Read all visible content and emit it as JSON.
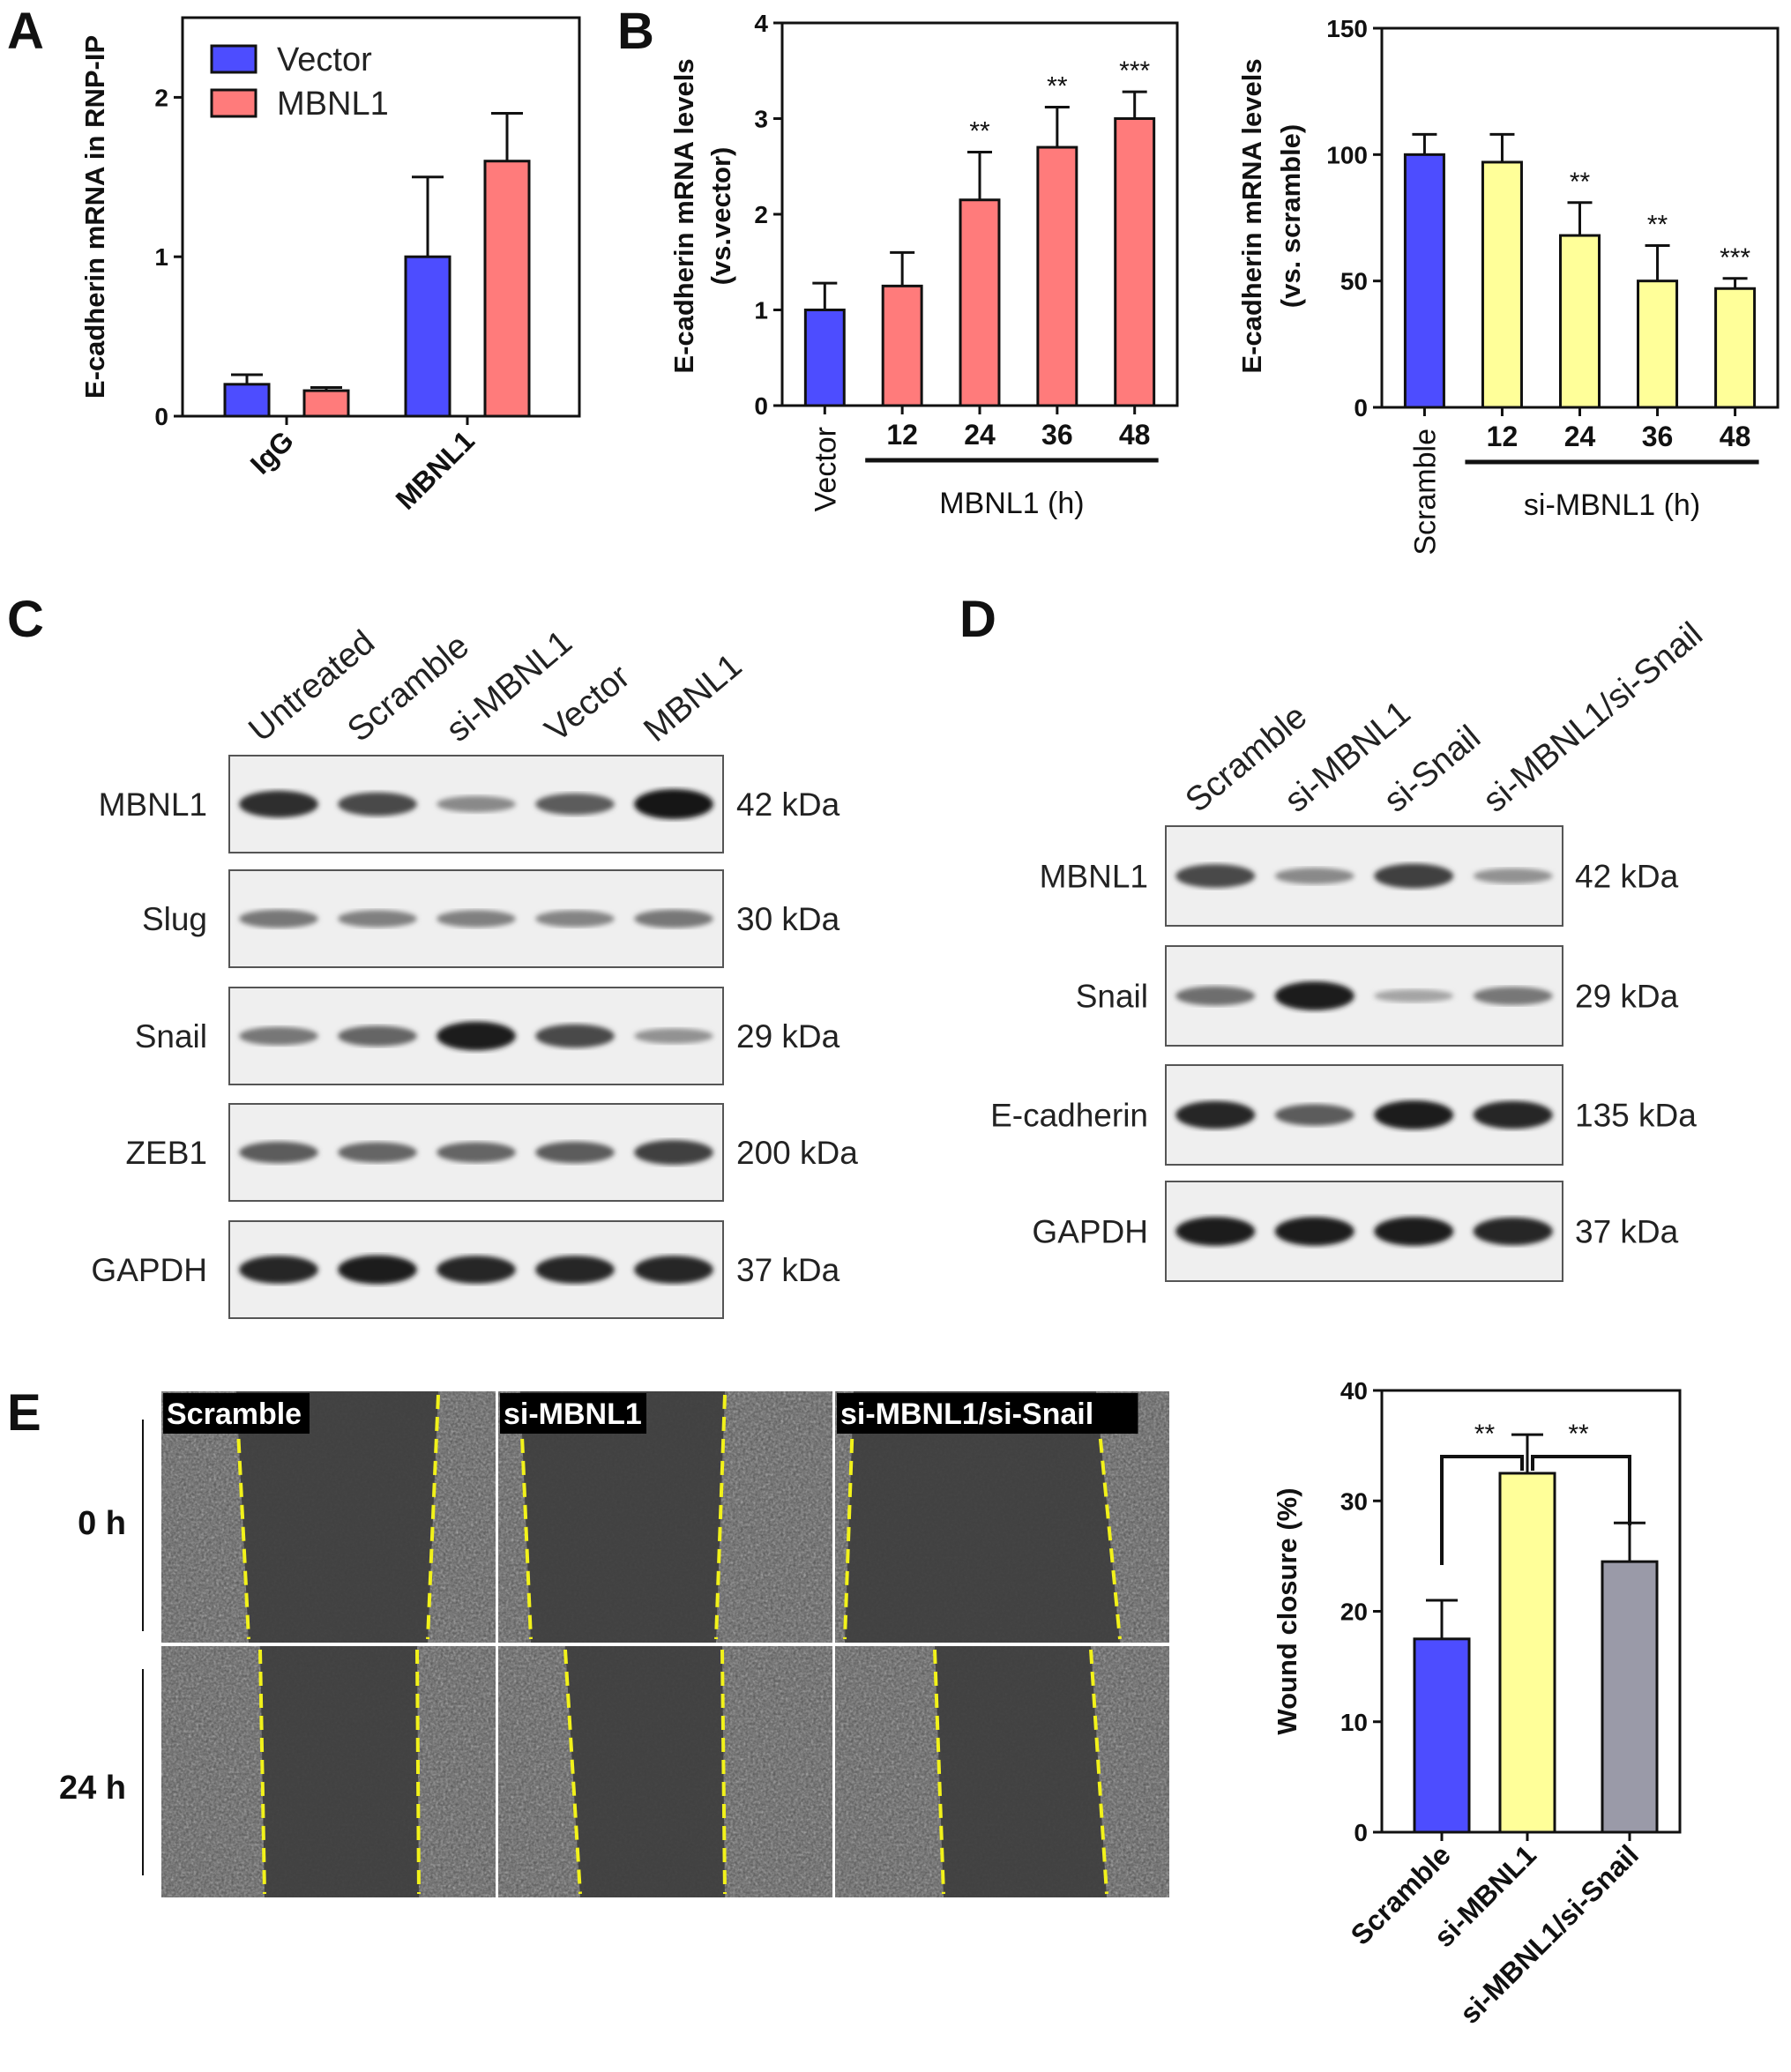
{
  "panels": {
    "A": "A",
    "B": "B",
    "C": "C",
    "D": "D",
    "E": "E"
  },
  "colors": {
    "vector": "#4d4dff",
    "mbnl1": "#ff7b7b",
    "si": "#ffff99",
    "grey": "#9a9aa8"
  },
  "chart_data": [
    {
      "id": "A",
      "type": "bar",
      "ylabel": "E-cadherin mRNA in RNP-IP",
      "ylim": [
        0,
        2.5
      ],
      "yticks": [
        0,
        1,
        2
      ],
      "categories": [
        "IgG",
        "MBNL1"
      ],
      "series": [
        {
          "name": "Vector",
          "values": [
            0.2,
            1.0
          ],
          "errors": [
            0.06,
            0.5
          ]
        },
        {
          "name": "MBNL1",
          "values": [
            0.16,
            1.6
          ],
          "errors": [
            0.02,
            0.3
          ]
        }
      ],
      "legend": "top-left"
    },
    {
      "id": "B1",
      "type": "bar",
      "ylabel": [
        "E-cadherin mRNA levels",
        "(vs.vector)"
      ],
      "ylim": [
        0,
        4
      ],
      "yticks": [
        0,
        1,
        2,
        3,
        4
      ],
      "categories": [
        "Vector",
        "12",
        "24",
        "36",
        "48"
      ],
      "values": [
        1.0,
        1.25,
        2.15,
        2.7,
        3.0
      ],
      "errors": [
        0.28,
        0.35,
        0.5,
        0.42,
        0.28
      ],
      "significance": [
        "",
        "",
        "**",
        "**",
        "***"
      ],
      "group_label": "MBNL1 (h)"
    },
    {
      "id": "B2",
      "type": "bar",
      "ylabel": [
        "E-cadherin mRNA levels",
        "(vs. scramble)"
      ],
      "ylim": [
        0,
        150
      ],
      "yticks": [
        0,
        50,
        100,
        150
      ],
      "categories": [
        "Scramble",
        "12",
        "24",
        "36",
        "48"
      ],
      "values": [
        100,
        97,
        68,
        50,
        47
      ],
      "errors": [
        8,
        11,
        13,
        14,
        4
      ],
      "significance": [
        "",
        "",
        "**",
        "**",
        "***"
      ],
      "group_label": "si-MBNL1 (h)"
    },
    {
      "id": "E",
      "type": "bar",
      "ylabel": "Wound closure (%)",
      "ylim": [
        0,
        40
      ],
      "yticks": [
        0,
        10,
        20,
        30,
        40
      ],
      "categories": [
        "Scramble",
        "si-MBNL1",
        "si-MBNL1/si-Snail"
      ],
      "values": [
        17.5,
        32.5,
        24.5
      ],
      "errors": [
        3.5,
        3.5,
        3.5
      ],
      "comparisons": [
        "**",
        "**"
      ]
    }
  ],
  "western_C": {
    "lanes": [
      "Untreated",
      "Scramble",
      "si-MBNL1",
      "Vector",
      "MBNL1"
    ],
    "rows": [
      {
        "protein": "MBNL1",
        "size": "42 kDa",
        "intensity": [
          0.85,
          0.7,
          0.35,
          0.6,
          1.0
        ]
      },
      {
        "protein": "Slug",
        "size": "30 kDa",
        "intensity": [
          0.45,
          0.4,
          0.4,
          0.38,
          0.45
        ]
      },
      {
        "protein": "Snail",
        "size": "29 kDa",
        "intensity": [
          0.45,
          0.55,
          0.95,
          0.7,
          0.3
        ]
      },
      {
        "protein": "ZEB1",
        "size": "200 kDa",
        "intensity": [
          0.6,
          0.55,
          0.55,
          0.6,
          0.75
        ]
      },
      {
        "protein": "GAPDH",
        "size": "37 kDa",
        "intensity": [
          0.9,
          0.95,
          0.9,
          0.9,
          0.9
        ]
      }
    ]
  },
  "western_D": {
    "lanes": [
      "Scramble",
      "si-MBNL1",
      "si-Snail",
      "si-MBNL1/si-Snail"
    ],
    "rows": [
      {
        "protein": "MBNL1",
        "size": "42 kDa",
        "intensity": [
          0.7,
          0.35,
          0.75,
          0.3
        ]
      },
      {
        "protein": "Snail",
        "size": "29 kDa",
        "intensity": [
          0.5,
          0.95,
          0.2,
          0.45
        ]
      },
      {
        "protein": "E-cadherin",
        "size": "135 kDa",
        "intensity": [
          0.9,
          0.6,
          0.95,
          0.9
        ]
      },
      {
        "protein": "GAPDH",
        "size": "37 kDa",
        "intensity": [
          0.95,
          0.95,
          0.95,
          0.9
        ]
      }
    ]
  },
  "wound_E": {
    "columns": [
      "Scramble",
      "si-MBNL1",
      "si-MBNL1/si-Snail"
    ],
    "times": [
      "0 h",
      "24 h"
    ]
  }
}
